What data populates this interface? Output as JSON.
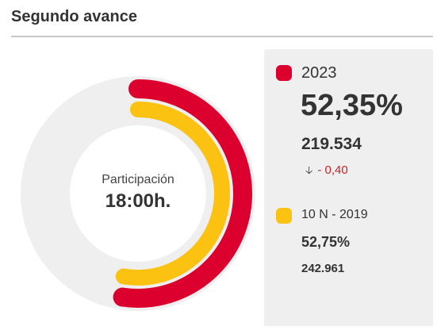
{
  "header": {
    "title": "Segundo avance"
  },
  "center": {
    "label": "Participación",
    "time": "18:00h."
  },
  "current": {
    "year": "2023",
    "percent_label": "52,35%",
    "percent": 52.35,
    "votes": "219.534",
    "diff": "- 0,40",
    "diff_icon": "arrow-down-icon",
    "color": "#dc002e"
  },
  "previous": {
    "year": "10 N - 2019",
    "percent_label": "52,75%",
    "percent": 52.75,
    "votes": "242.961",
    "color": "#fcc211"
  },
  "colors": {
    "track": "#efefef",
    "panel": "#efefef"
  }
}
